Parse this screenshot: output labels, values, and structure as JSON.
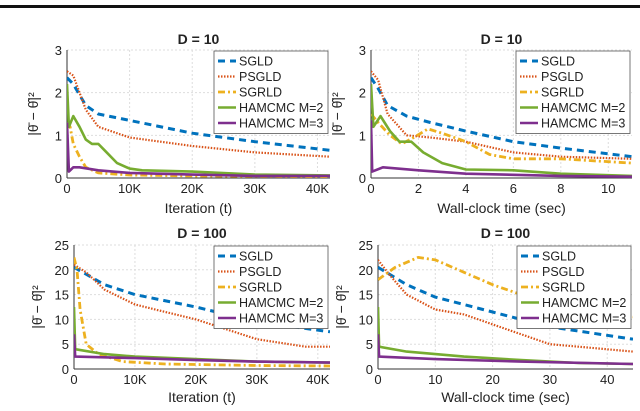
{
  "chart_data": [
    {
      "type": "line",
      "title": "D = 10",
      "xlabel": "Iteration (t)",
      "ylabel": "|θ̄ − θ̂|²",
      "xlim": [
        0,
        42000
      ],
      "ylim": [
        0,
        3
      ],
      "grid": true,
      "legend": "top-right",
      "xticks": [
        0,
        10000,
        20000,
        30000,
        40000
      ],
      "xtick_labels": [
        "0",
        "10K",
        "20K",
        "30K",
        "40K"
      ],
      "yticks": [
        0,
        1,
        2,
        3
      ],
      "ytick_labels": [
        "0",
        "1",
        "2",
        "3"
      ],
      "series": [
        {
          "name": "SGLD",
          "x": [
            0,
            1000,
            3000,
            5000,
            10000,
            20000,
            30000,
            42000
          ],
          "y": [
            2.35,
            2.2,
            1.7,
            1.5,
            1.35,
            1.05,
            0.85,
            0.65
          ]
        },
        {
          "name": "PSGLD",
          "x": [
            0,
            1000,
            3000,
            5000,
            10000,
            20000,
            30000,
            42000
          ],
          "y": [
            2.5,
            2.4,
            1.6,
            1.2,
            0.95,
            0.75,
            0.6,
            0.5
          ]
        },
        {
          "name": "SGRLD",
          "x": [
            0,
            500,
            1000,
            2000,
            3000,
            5000,
            10000,
            20000,
            42000
          ],
          "y": [
            1.3,
            1.2,
            0.8,
            0.5,
            0.25,
            0.12,
            0.07,
            0.05,
            0.03
          ]
        },
        {
          "name": "HAMCMC M=2",
          "x": [
            0,
            300,
            1000,
            2000,
            3000,
            4000,
            5000,
            6000,
            8000,
            10000,
            12000,
            20000,
            30000,
            42000
          ],
          "y": [
            2.2,
            1.2,
            1.45,
            1.2,
            0.9,
            0.8,
            0.8,
            0.65,
            0.35,
            0.22,
            0.18,
            0.15,
            0.08,
            0.06
          ]
        },
        {
          "name": "HAMCMC M=3",
          "x": [
            0,
            300,
            1000,
            2000,
            5000,
            10000,
            20000,
            30000,
            42000
          ],
          "y": [
            1.3,
            0.15,
            0.25,
            0.25,
            0.18,
            0.12,
            0.08,
            0.05,
            0.05
          ]
        }
      ]
    },
    {
      "type": "line",
      "title": "D = 10",
      "xlabel": "Wall-clock time (sec)",
      "ylabel": "|θ̄ − θ̂|²",
      "xlim": [
        0,
        11
      ],
      "ylim": [
        0,
        3
      ],
      "grid": true,
      "legend": "top-right",
      "xticks": [
        0,
        2,
        4,
        6,
        8,
        10
      ],
      "xtick_labels": [
        "0",
        "2",
        "4",
        "6",
        "8",
        "10"
      ],
      "yticks": [
        0,
        1,
        2,
        3
      ],
      "ytick_labels": [
        "0",
        "1",
        "2",
        "3"
      ],
      "series": [
        {
          "name": "SGLD",
          "x": [
            0,
            0.3,
            0.7,
            1.5,
            2.5,
            4,
            6,
            8,
            11
          ],
          "y": [
            2.35,
            2.1,
            1.7,
            1.45,
            1.3,
            1.1,
            0.85,
            0.7,
            0.5
          ]
        },
        {
          "name": "PSGLD",
          "x": [
            0,
            0.3,
            0.7,
            1.5,
            2.5,
            4,
            6,
            8,
            11
          ],
          "y": [
            2.5,
            2.3,
            1.5,
            1.0,
            0.95,
            0.85,
            0.6,
            0.5,
            0.45
          ]
        },
        {
          "name": "SGRLD",
          "x": [
            0,
            0.3,
            0.8,
            1.3,
            1.8,
            2.4,
            3,
            4,
            5,
            6,
            8,
            11
          ],
          "y": [
            1.5,
            1.3,
            1.0,
            0.8,
            0.95,
            1.15,
            1.05,
            0.85,
            0.55,
            0.45,
            0.45,
            0.35
          ]
        },
        {
          "name": "HAMCMC M=2",
          "x": [
            0,
            0.1,
            0.4,
            0.8,
            1.2,
            1.7,
            2.2,
            3,
            4,
            6,
            8,
            11
          ],
          "y": [
            2.2,
            1.2,
            1.45,
            1.1,
            0.85,
            0.85,
            0.6,
            0.35,
            0.2,
            0.18,
            0.1,
            0.05
          ]
        },
        {
          "name": "HAMCMC M=3",
          "x": [
            0,
            0.05,
            0.5,
            2,
            4,
            8,
            11
          ],
          "y": [
            1.35,
            0.15,
            0.25,
            0.18,
            0.1,
            0.05,
            0.03
          ]
        }
      ]
    },
    {
      "type": "line",
      "title": "D = 100",
      "xlabel": "Iteration (t)",
      "ylabel": "|θ̄ − θ̂|²",
      "xlim": [
        0,
        42000
      ],
      "ylim": [
        0,
        25
      ],
      "grid": true,
      "legend": "top-right",
      "xticks": [
        0,
        10000,
        20000,
        30000,
        40000
      ],
      "xtick_labels": [
        "0",
        "10K",
        "20K",
        "30K",
        "40K"
      ],
      "yticks": [
        0,
        5,
        10,
        15,
        20,
        25
      ],
      "ytick_labels": [
        "0",
        "5",
        "10",
        "15",
        "20",
        "25"
      ],
      "series": [
        {
          "name": "SGLD",
          "x": [
            0,
            5000,
            10000,
            20000,
            30000,
            42000
          ],
          "y": [
            20.5,
            17,
            15,
            12.5,
            9.5,
            7.5
          ]
        },
        {
          "name": "PSGLD",
          "x": [
            0,
            2000,
            5000,
            10000,
            15000,
            20000,
            30000,
            38000,
            42000
          ],
          "y": [
            21,
            19.5,
            16,
            13,
            11.5,
            10,
            6,
            4.5,
            4.5
          ]
        },
        {
          "name": "SGRLD",
          "x": [
            0,
            500,
            1000,
            2000,
            4000,
            8000,
            15000,
            30000,
            42000
          ],
          "y": [
            22.5,
            20,
            12,
            5,
            3,
            1.5,
            1,
            0.7,
            0.6
          ]
        },
        {
          "name": "HAMCMC M=2",
          "x": [
            0,
            200,
            5000,
            10000,
            20000,
            30000,
            42000
          ],
          "y": [
            12.5,
            4,
            3,
            2.5,
            2,
            1.5,
            1.3
          ]
        },
        {
          "name": "HAMCMC M=3",
          "x": [
            0,
            200,
            10000,
            20000,
            30000,
            42000
          ],
          "y": [
            7,
            2.5,
            2.2,
            1.8,
            1.5,
            1.3
          ]
        }
      ]
    },
    {
      "type": "line",
      "title": "D = 100",
      "xlabel": "Wall-clock time (sec)",
      "ylabel": "|θ̄ − θ̂|²",
      "xlim": [
        0,
        44.5
      ],
      "ylim": [
        0,
        25
      ],
      "grid": true,
      "legend": "top-right",
      "xticks": [
        0,
        10,
        20,
        30,
        40
      ],
      "xtick_labels": [
        "0",
        "10",
        "20",
        "30",
        "40"
      ],
      "yticks": [
        0,
        5,
        10,
        15,
        20,
        25
      ],
      "ytick_labels": [
        "0",
        "5",
        "10",
        "15",
        "20",
        "25"
      ],
      "series": [
        {
          "name": "SGLD",
          "x": [
            0,
            5,
            10,
            20,
            30,
            44.5
          ],
          "y": [
            20.5,
            17,
            14.5,
            11.5,
            8.5,
            6
          ]
        },
        {
          "name": "PSGLD",
          "x": [
            0,
            2,
            5,
            10,
            15,
            20,
            30,
            35,
            44.5
          ],
          "y": [
            22,
            19,
            15,
            12,
            11,
            9,
            5,
            4.5,
            3.5
          ]
        },
        {
          "name": "SGRLD",
          "x": [
            0,
            3,
            7,
            10,
            15,
            20,
            25,
            30,
            35,
            44.5
          ],
          "y": [
            18,
            20.5,
            22.5,
            22,
            19.5,
            17,
            15,
            14,
            12.5,
            10.5
          ]
        },
        {
          "name": "HAMCMC M=2",
          "x": [
            0,
            0.2,
            5,
            15,
            25,
            35,
            44.5
          ],
          "y": [
            12.5,
            4.5,
            3.5,
            2.5,
            1.8,
            1.2,
            1
          ]
        },
        {
          "name": "HAMCMC M=3",
          "x": [
            0,
            0.2,
            10,
            25,
            44.5
          ],
          "y": [
            7,
            2.5,
            2,
            1.5,
            1
          ]
        }
      ]
    }
  ],
  "series_styles": {
    "SGLD": {
      "color": "#0072BD",
      "dash": "dashed"
    },
    "PSGLD": {
      "color": "#D95319",
      "dash": "dotted"
    },
    "SGRLD": {
      "color": "#EDB120",
      "dash": "dash-dot"
    },
    "HAMCMC M=2": {
      "color": "#77AC30",
      "dash": "solid"
    },
    "HAMCMC M=3": {
      "color": "#7E2F8E",
      "dash": "solid"
    }
  }
}
